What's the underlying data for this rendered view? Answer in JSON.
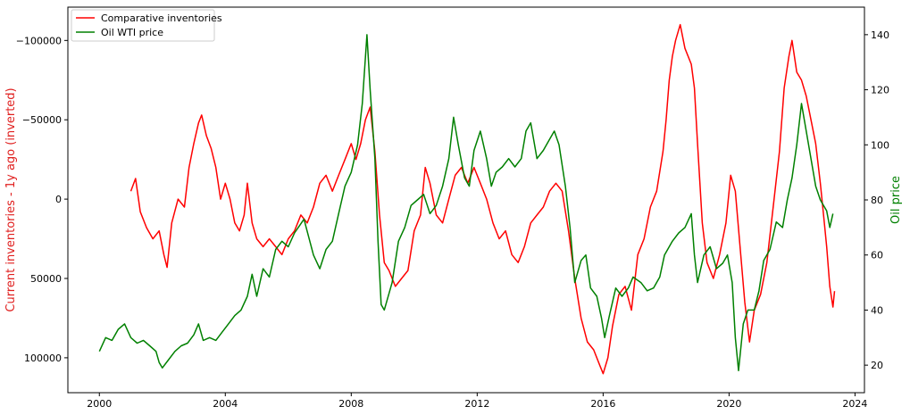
{
  "chart_data": {
    "type": "line",
    "title": "",
    "xlabel": "",
    "x_range": [
      1999.0,
      2024.3
    ],
    "x_ticks": [
      2000,
      2004,
      2008,
      2012,
      2016,
      2020,
      2024
    ],
    "y_left": {
      "label": "Current inventories - 1y ago (inverted)",
      "color": "#e0201f",
      "inverted": true,
      "range": [
        -121000,
        122000
      ],
      "ticks": [
        -100000,
        -50000,
        0,
        50000,
        100000
      ],
      "tick_labels": [
        "−100000",
        "−50000",
        "0",
        "50000",
        "100000"
      ]
    },
    "y_right": {
      "label": "Oil price",
      "color": "#008000",
      "range": [
        10,
        150
      ],
      "ticks": [
        20,
        40,
        60,
        80,
        100,
        120,
        140
      ]
    },
    "legend": {
      "placement": "top-left"
    },
    "grid": false,
    "series": [
      {
        "name": "Comparative inventories",
        "axis": "left",
        "color": "#ff0000",
        "points": [
          [
            2001.0,
            -5000
          ],
          [
            2001.15,
            -13000
          ],
          [
            2001.3,
            8000
          ],
          [
            2001.5,
            18000
          ],
          [
            2001.7,
            25000
          ],
          [
            2001.9,
            20000
          ],
          [
            2002.05,
            35000
          ],
          [
            2002.15,
            43000
          ],
          [
            2002.3,
            15000
          ],
          [
            2002.5,
            0
          ],
          [
            2002.7,
            5000
          ],
          [
            2002.85,
            -20000
          ],
          [
            2003.0,
            -35000
          ],
          [
            2003.15,
            -48000
          ],
          [
            2003.25,
            -53000
          ],
          [
            2003.4,
            -40000
          ],
          [
            2003.55,
            -32000
          ],
          [
            2003.7,
            -20000
          ],
          [
            2003.85,
            0
          ],
          [
            2004.0,
            -10000
          ],
          [
            2004.15,
            0
          ],
          [
            2004.3,
            15000
          ],
          [
            2004.45,
            20000
          ],
          [
            2004.6,
            10000
          ],
          [
            2004.7,
            -10000
          ],
          [
            2004.85,
            15000
          ],
          [
            2005.0,
            25000
          ],
          [
            2005.2,
            30000
          ],
          [
            2005.4,
            25000
          ],
          [
            2005.6,
            30000
          ],
          [
            2005.8,
            35000
          ],
          [
            2006.0,
            25000
          ],
          [
            2006.2,
            20000
          ],
          [
            2006.4,
            10000
          ],
          [
            2006.6,
            15000
          ],
          [
            2006.8,
            5000
          ],
          [
            2007.0,
            -10000
          ],
          [
            2007.2,
            -15000
          ],
          [
            2007.4,
            -5000
          ],
          [
            2007.6,
            -15000
          ],
          [
            2007.8,
            -25000
          ],
          [
            2008.0,
            -35000
          ],
          [
            2008.15,
            -25000
          ],
          [
            2008.3,
            -35000
          ],
          [
            2008.45,
            -50000
          ],
          [
            2008.6,
            -58000
          ],
          [
            2008.75,
            -30000
          ],
          [
            2008.9,
            10000
          ],
          [
            2009.05,
            40000
          ],
          [
            2009.2,
            45000
          ],
          [
            2009.4,
            55000
          ],
          [
            2009.6,
            50000
          ],
          [
            2009.8,
            45000
          ],
          [
            2010.0,
            20000
          ],
          [
            2010.2,
            10000
          ],
          [
            2010.35,
            -20000
          ],
          [
            2010.5,
            -10000
          ],
          [
            2010.7,
            10000
          ],
          [
            2010.9,
            15000
          ],
          [
            2011.1,
            0
          ],
          [
            2011.3,
            -15000
          ],
          [
            2011.5,
            -20000
          ],
          [
            2011.7,
            -10000
          ],
          [
            2011.9,
            -20000
          ],
          [
            2012.1,
            -10000
          ],
          [
            2012.3,
            0
          ],
          [
            2012.5,
            15000
          ],
          [
            2012.7,
            25000
          ],
          [
            2012.9,
            20000
          ],
          [
            2013.1,
            35000
          ],
          [
            2013.3,
            40000
          ],
          [
            2013.5,
            30000
          ],
          [
            2013.7,
            15000
          ],
          [
            2013.9,
            10000
          ],
          [
            2014.1,
            5000
          ],
          [
            2014.3,
            -5000
          ],
          [
            2014.5,
            -10000
          ],
          [
            2014.7,
            -5000
          ],
          [
            2014.9,
            20000
          ],
          [
            2015.1,
            50000
          ],
          [
            2015.3,
            75000
          ],
          [
            2015.5,
            90000
          ],
          [
            2015.7,
            95000
          ],
          [
            2015.9,
            105000
          ],
          [
            2016.0,
            110000
          ],
          [
            2016.15,
            100000
          ],
          [
            2016.3,
            80000
          ],
          [
            2016.5,
            60000
          ],
          [
            2016.7,
            55000
          ],
          [
            2016.9,
            70000
          ],
          [
            2017.1,
            35000
          ],
          [
            2017.3,
            25000
          ],
          [
            2017.5,
            5000
          ],
          [
            2017.7,
            -5000
          ],
          [
            2017.9,
            -30000
          ],
          [
            2018.0,
            -50000
          ],
          [
            2018.1,
            -75000
          ],
          [
            2018.2,
            -90000
          ],
          [
            2018.3,
            -100000
          ],
          [
            2018.45,
            -110000
          ],
          [
            2018.6,
            -95000
          ],
          [
            2018.8,
            -85000
          ],
          [
            2018.9,
            -70000
          ],
          [
            2019.0,
            -35000
          ],
          [
            2019.15,
            15000
          ],
          [
            2019.3,
            40000
          ],
          [
            2019.5,
            50000
          ],
          [
            2019.7,
            35000
          ],
          [
            2019.9,
            15000
          ],
          [
            2020.05,
            -15000
          ],
          [
            2020.2,
            -5000
          ],
          [
            2020.35,
            30000
          ],
          [
            2020.5,
            65000
          ],
          [
            2020.65,
            90000
          ],
          [
            2020.8,
            70000
          ],
          [
            2021.0,
            60000
          ],
          [
            2021.2,
            40000
          ],
          [
            2021.4,
            5000
          ],
          [
            2021.6,
            -30000
          ],
          [
            2021.75,
            -70000
          ],
          [
            2021.9,
            -90000
          ],
          [
            2022.0,
            -100000
          ],
          [
            2022.15,
            -80000
          ],
          [
            2022.3,
            -75000
          ],
          [
            2022.45,
            -65000
          ],
          [
            2022.6,
            -50000
          ],
          [
            2022.75,
            -35000
          ],
          [
            2022.9,
            -10000
          ],
          [
            2023.0,
            10000
          ],
          [
            2023.1,
            30000
          ],
          [
            2023.2,
            55000
          ],
          [
            2023.3,
            68000
          ],
          [
            2023.35,
            58000
          ]
        ]
      },
      {
        "name": "Oil WTI price",
        "axis": "right",
        "color": "#008000",
        "points": [
          [
            2000.0,
            25
          ],
          [
            2000.2,
            30
          ],
          [
            2000.4,
            29
          ],
          [
            2000.6,
            33
          ],
          [
            2000.8,
            35
          ],
          [
            2001.0,
            30
          ],
          [
            2001.2,
            28
          ],
          [
            2001.4,
            29
          ],
          [
            2001.6,
            27
          ],
          [
            2001.8,
            25
          ],
          [
            2001.9,
            21
          ],
          [
            2002.0,
            19
          ],
          [
            2002.2,
            22
          ],
          [
            2002.4,
            25
          ],
          [
            2002.6,
            27
          ],
          [
            2002.8,
            28
          ],
          [
            2003.0,
            31
          ],
          [
            2003.15,
            35
          ],
          [
            2003.3,
            29
          ],
          [
            2003.5,
            30
          ],
          [
            2003.7,
            29
          ],
          [
            2003.9,
            32
          ],
          [
            2004.1,
            35
          ],
          [
            2004.3,
            38
          ],
          [
            2004.5,
            40
          ],
          [
            2004.7,
            45
          ],
          [
            2004.85,
            53
          ],
          [
            2005.0,
            45
          ],
          [
            2005.2,
            55
          ],
          [
            2005.4,
            52
          ],
          [
            2005.6,
            62
          ],
          [
            2005.8,
            65
          ],
          [
            2006.0,
            63
          ],
          [
            2006.2,
            68
          ],
          [
            2006.5,
            73
          ],
          [
            2006.8,
            60
          ],
          [
            2007.0,
            55
          ],
          [
            2007.2,
            62
          ],
          [
            2007.4,
            65
          ],
          [
            2007.6,
            75
          ],
          [
            2007.8,
            85
          ],
          [
            2008.0,
            90
          ],
          [
            2008.2,
            100
          ],
          [
            2008.35,
            115
          ],
          [
            2008.5,
            140
          ],
          [
            2008.6,
            120
          ],
          [
            2008.75,
            95
          ],
          [
            2008.85,
            65
          ],
          [
            2008.95,
            42
          ],
          [
            2009.05,
            40
          ],
          [
            2009.3,
            50
          ],
          [
            2009.5,
            65
          ],
          [
            2009.7,
            70
          ],
          [
            2009.9,
            78
          ],
          [
            2010.1,
            80
          ],
          [
            2010.3,
            82
          ],
          [
            2010.5,
            75
          ],
          [
            2010.7,
            78
          ],
          [
            2010.9,
            85
          ],
          [
            2011.1,
            95
          ],
          [
            2011.25,
            110
          ],
          [
            2011.4,
            100
          ],
          [
            2011.6,
            88
          ],
          [
            2011.75,
            85
          ],
          [
            2011.9,
            98
          ],
          [
            2012.1,
            105
          ],
          [
            2012.3,
            95
          ],
          [
            2012.45,
            85
          ],
          [
            2012.6,
            90
          ],
          [
            2012.8,
            92
          ],
          [
            2013.0,
            95
          ],
          [
            2013.2,
            92
          ],
          [
            2013.4,
            95
          ],
          [
            2013.55,
            105
          ],
          [
            2013.7,
            108
          ],
          [
            2013.9,
            95
          ],
          [
            2014.1,
            98
          ],
          [
            2014.3,
            102
          ],
          [
            2014.45,
            105
          ],
          [
            2014.6,
            100
          ],
          [
            2014.8,
            85
          ],
          [
            2014.95,
            70
          ],
          [
            2015.1,
            50
          ],
          [
            2015.3,
            58
          ],
          [
            2015.45,
            60
          ],
          [
            2015.6,
            48
          ],
          [
            2015.8,
            45
          ],
          [
            2015.95,
            37
          ],
          [
            2016.05,
            30
          ],
          [
            2016.2,
            38
          ],
          [
            2016.4,
            48
          ],
          [
            2016.6,
            45
          ],
          [
            2016.8,
            48
          ],
          [
            2016.95,
            52
          ],
          [
            2017.2,
            50
          ],
          [
            2017.4,
            47
          ],
          [
            2017.6,
            48
          ],
          [
            2017.8,
            52
          ],
          [
            2017.95,
            60
          ],
          [
            2018.2,
            65
          ],
          [
            2018.4,
            68
          ],
          [
            2018.6,
            70
          ],
          [
            2018.8,
            75
          ],
          [
            2018.9,
            60
          ],
          [
            2019.0,
            50
          ],
          [
            2019.2,
            60
          ],
          [
            2019.4,
            63
          ],
          [
            2019.6,
            55
          ],
          [
            2019.8,
            57
          ],
          [
            2019.95,
            60
          ],
          [
            2020.1,
            50
          ],
          [
            2020.2,
            30
          ],
          [
            2020.3,
            18
          ],
          [
            2020.45,
            35
          ],
          [
            2020.6,
            40
          ],
          [
            2020.8,
            40
          ],
          [
            2020.95,
            47
          ],
          [
            2021.1,
            58
          ],
          [
            2021.3,
            62
          ],
          [
            2021.5,
            72
          ],
          [
            2021.7,
            70
          ],
          [
            2021.85,
            80
          ],
          [
            2022.0,
            88
          ],
          [
            2022.15,
            100
          ],
          [
            2022.3,
            115
          ],
          [
            2022.45,
            105
          ],
          [
            2022.6,
            95
          ],
          [
            2022.75,
            85
          ],
          [
            2022.9,
            80
          ],
          [
            2023.0,
            78
          ],
          [
            2023.1,
            76
          ],
          [
            2023.2,
            70
          ],
          [
            2023.3,
            75
          ]
        ]
      }
    ]
  }
}
